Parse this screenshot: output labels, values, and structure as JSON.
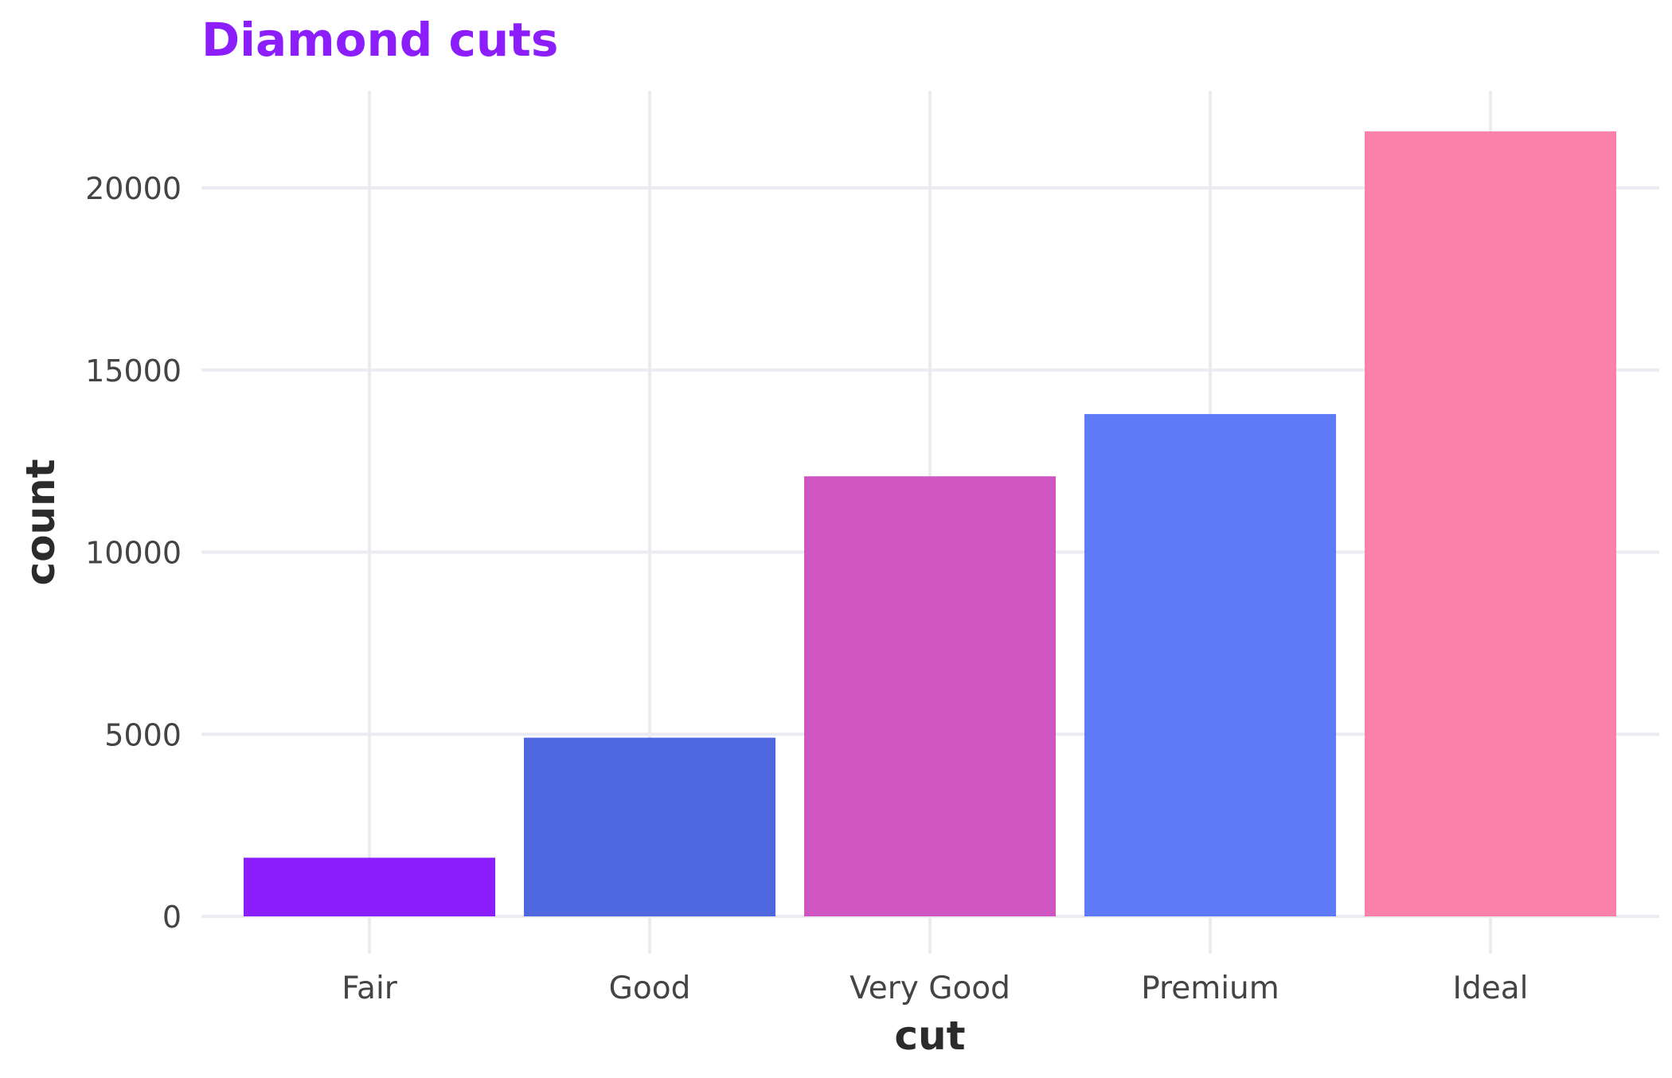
{
  "chart_data": {
    "type": "bar",
    "title": "Diamond cuts",
    "xlabel": "cut",
    "ylabel": "count",
    "categories": [
      "Fair",
      "Good",
      "Very Good",
      "Premium",
      "Ideal"
    ],
    "values": [
      1610,
      4906,
      12082,
      13791,
      21551
    ],
    "colors": [
      "#8B1EFA",
      "#4F67DF",
      "#CF56C2",
      "#5F7AF7",
      "#FD82AB"
    ],
    "title_color": "#8B1EFA",
    "ylim": [
      0,
      22600
    ],
    "yticks": [
      0,
      5000,
      10000,
      15000,
      20000
    ],
    "ytick_labels": [
      "0",
      "5000",
      "10000",
      "15000",
      "20000"
    ],
    "grid": true,
    "legend": "none"
  }
}
